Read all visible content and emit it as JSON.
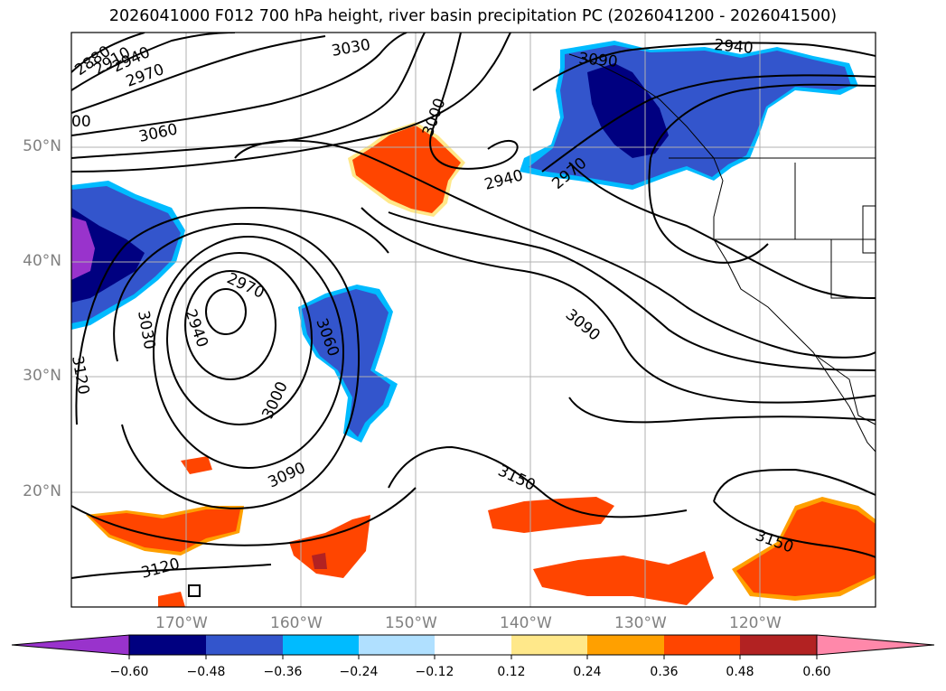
{
  "title": "2026041000 F012 700 hPa height, river basin precipitation PC (2026041200 - 2026041500)",
  "map": {
    "lon_labels": [
      "170°W",
      "160°W",
      "150°W",
      "140°W",
      "130°W",
      "120°W"
    ],
    "lat_labels": [
      "50°N",
      "40°N",
      "30°N",
      "20°N"
    ],
    "contour_labels": [
      "2880",
      "2910",
      "2940",
      "2970",
      "3030",
      "3060",
      "00",
      "3000",
      "2940",
      "2970",
      "3030",
      "2940",
      "3060",
      "3120",
      "3000",
      "3090",
      "3090",
      "3150",
      "3150",
      "3120",
      "2940",
      "2970",
      "3090"
    ],
    "land_color": "#000000",
    "contour_color": "#000000",
    "grid_color": "#b0b0b0"
  },
  "colorbar": {
    "ticks": [
      "−0.60",
      "−0.48",
      "−0.36",
      "−0.24",
      "−0.12",
      "0.12",
      "0.24",
      "0.36",
      "0.48",
      "0.60"
    ],
    "colors": [
      "#9933cc",
      "#000080",
      "#3355cc",
      "#00bbff",
      "#b0e0ff",
      "#ffffff",
      "#ffe88a",
      "#ffa000",
      "#ff4500",
      "#b22222",
      "#ff88aa"
    ]
  }
}
